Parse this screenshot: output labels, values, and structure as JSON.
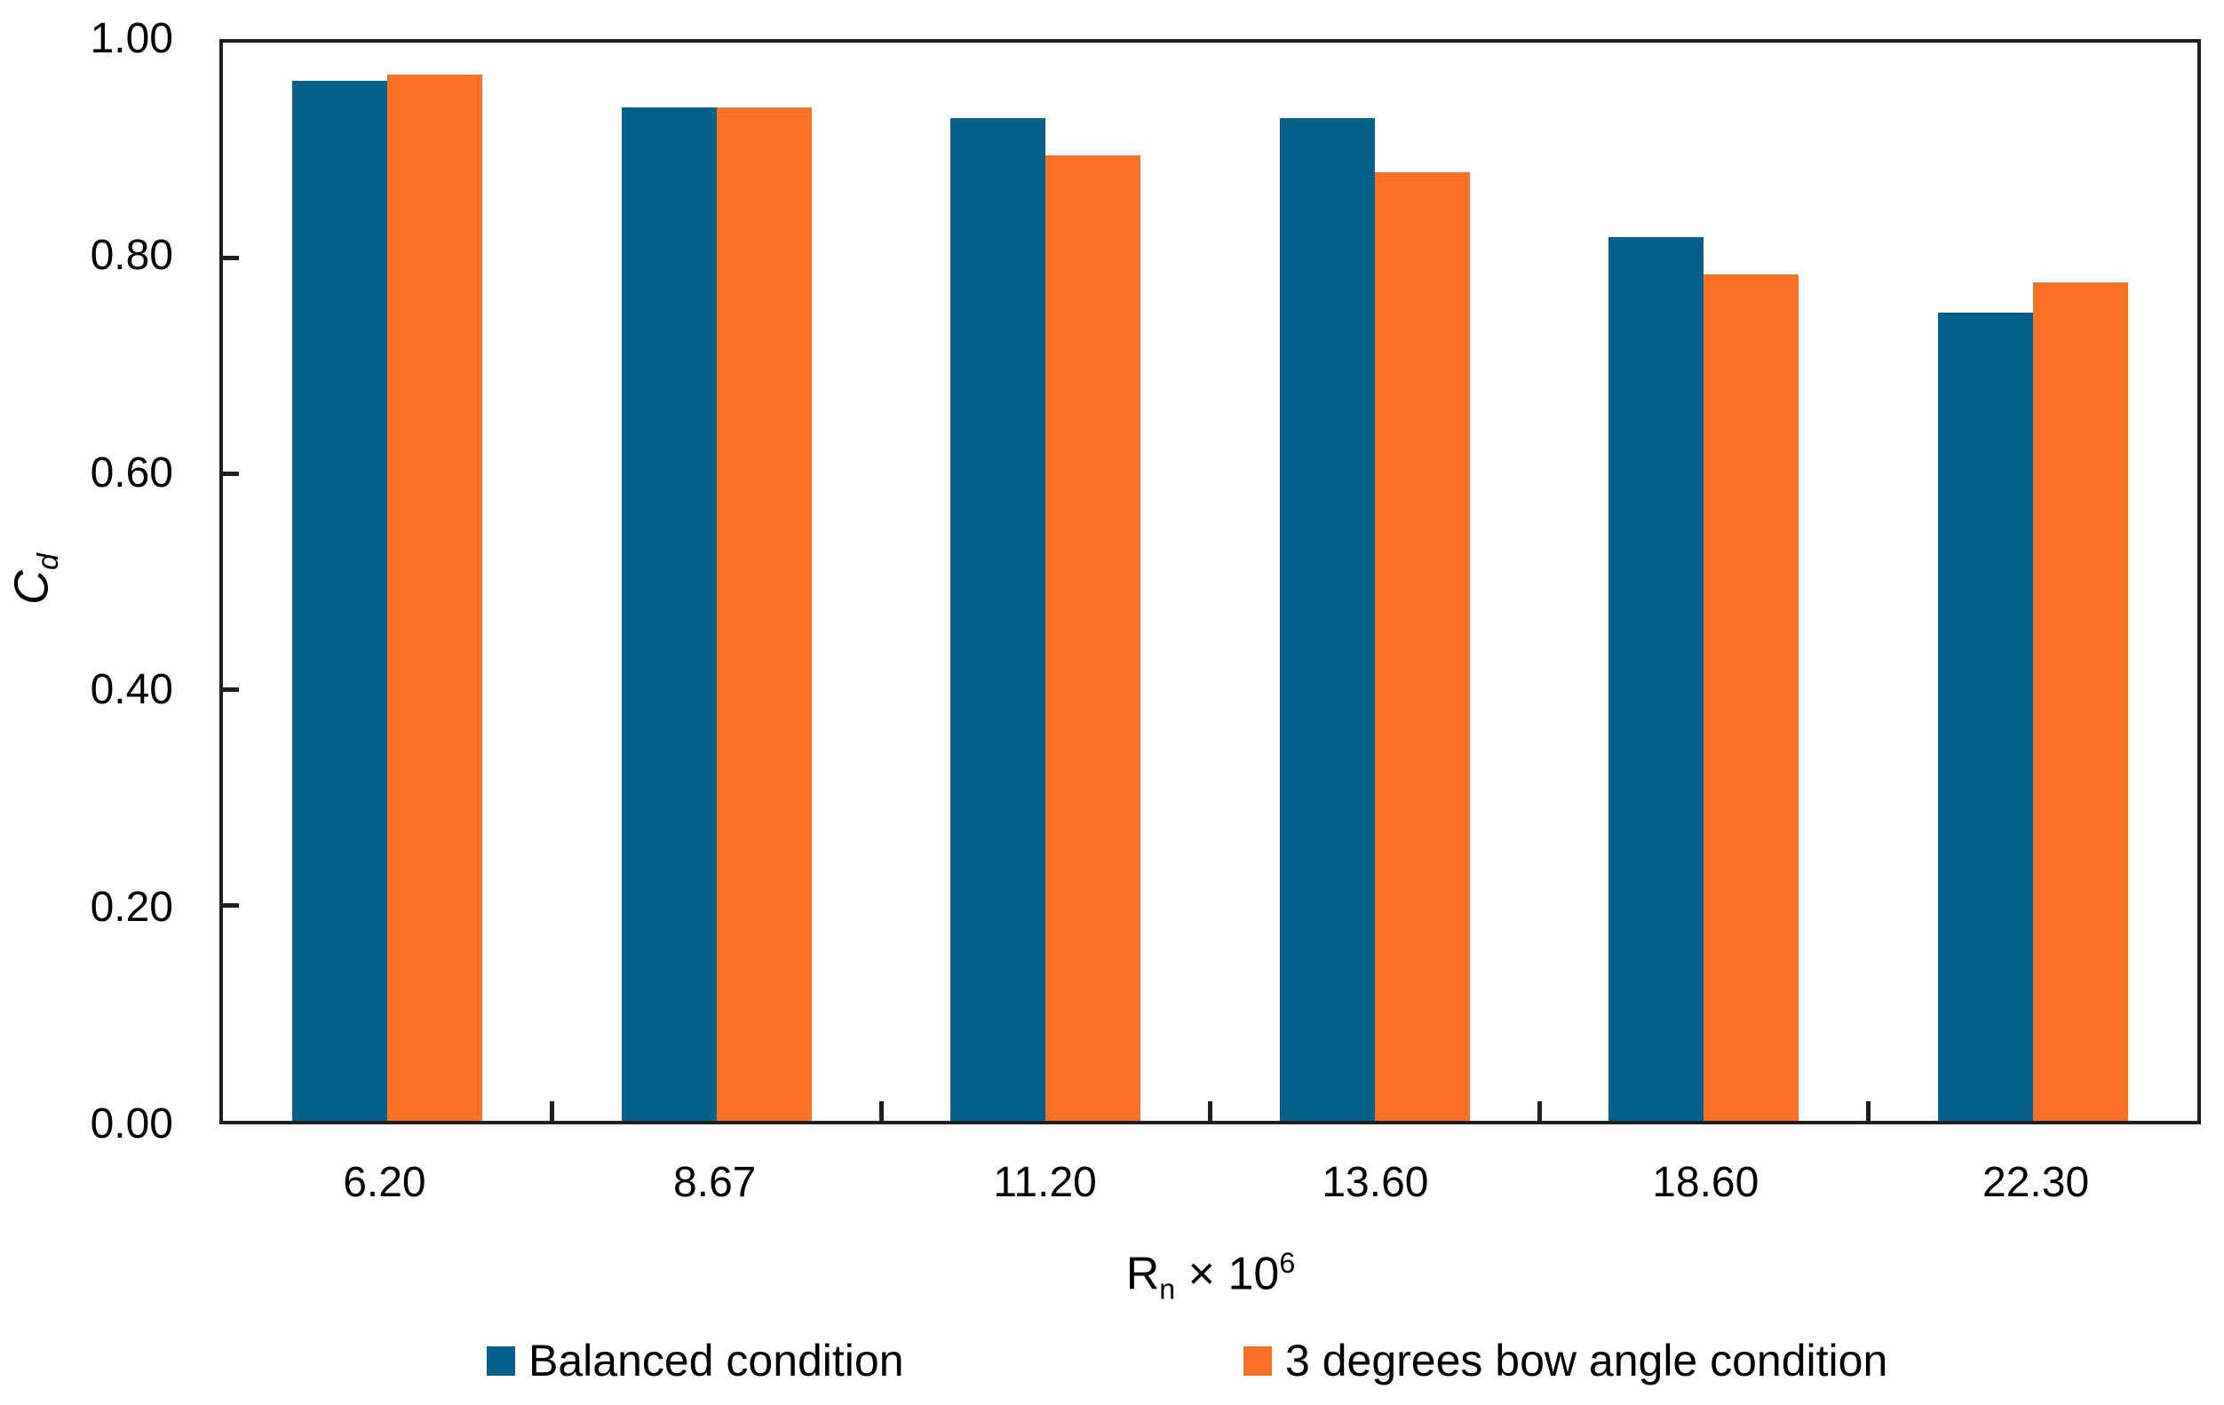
{
  "figure": {
    "background": "#ffffff",
    "axis_color": "#1f1f1f",
    "text_color": "#000000"
  },
  "chart_data": {
    "type": "bar",
    "title": "",
    "xlabel": "Rn × 10^6",
    "xlabel_parts": {
      "base": "R",
      "sub": "n",
      "times": " × 10",
      "sup": "6"
    },
    "ylabel": "Cd",
    "ylabel_parts": {
      "base": "C",
      "sub": "d"
    },
    "categories": [
      "6.20",
      "8.67",
      "11.20",
      "13.60",
      "18.60",
      "22.30"
    ],
    "series": [
      {
        "name": "Balanced condition",
        "color": "#05608A",
        "values": [
          0.965,
          0.94,
          0.93,
          0.93,
          0.82,
          0.75
        ]
      },
      {
        "name": "3 degrees bow angle condition",
        "color": "#FB7226",
        "values": [
          0.97,
          0.94,
          0.895,
          0.88,
          0.785,
          0.778
        ]
      }
    ],
    "ylim": [
      0.0,
      1.0
    ],
    "yticks": [
      {
        "value": 0.0,
        "label": "0.00"
      },
      {
        "value": 0.2,
        "label": "0.20"
      },
      {
        "value": 0.4,
        "label": "0.40"
      },
      {
        "value": 0.6,
        "label": "0.60"
      },
      {
        "value": 0.8,
        "label": "0.80"
      },
      {
        "value": 1.0,
        "label": "1.00"
      }
    ],
    "grid": false,
    "legend_position": "bottom"
  }
}
